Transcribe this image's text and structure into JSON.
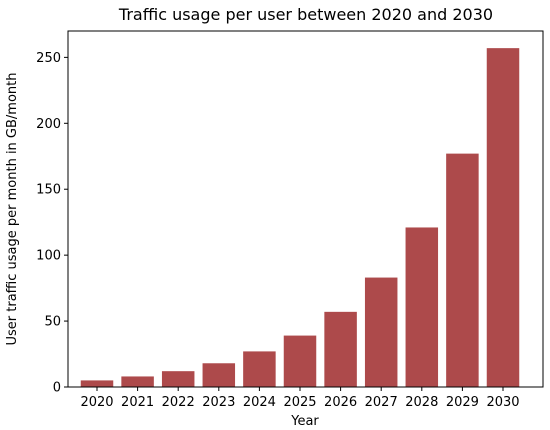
{
  "chart_data": {
    "type": "bar",
    "title": "Traffic usage per user between 2020 and 2030",
    "xlabel": "Year",
    "ylabel": "User traffic usage per month in GB/month",
    "categories": [
      "2020",
      "2021",
      "2022",
      "2023",
      "2024",
      "2025",
      "2026",
      "2027",
      "2028",
      "2029",
      "2030"
    ],
    "values": [
      5,
      8,
      12,
      18,
      27,
      39,
      57,
      83,
      121,
      177,
      257
    ],
    "ylim": [
      0,
      270
    ],
    "yticks": [
      0,
      50,
      100,
      150,
      200,
      250
    ],
    "bar_color": "#ad4a4b",
    "grid": false,
    "legend": "none"
  }
}
